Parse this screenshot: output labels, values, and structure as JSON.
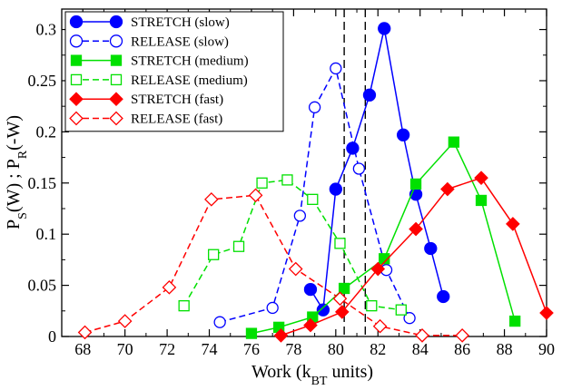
{
  "chart_data": {
    "type": "line",
    "xlabel": "Work (k_BT units)",
    "ylabel": "P_S(W) ; P_R(-W)",
    "xlim": [
      67,
      90
    ],
    "ylim": [
      0,
      0.32
    ],
    "xticks": [
      68,
      70,
      72,
      74,
      76,
      78,
      80,
      82,
      84,
      86,
      88,
      90
    ],
    "yticks": [
      0,
      0.05,
      0.1,
      0.15,
      0.2,
      0.25,
      0.3
    ],
    "ytick_labels": [
      "0",
      "0.05",
      "0.1",
      "0.15",
      "0.2",
      "0.25",
      "0.3"
    ],
    "vlines": [
      80.4,
      81.4
    ],
    "legend_position": "top-left",
    "grid": false,
    "series": [
      {
        "name": "STRETCH (slow)",
        "color": "#0000ff",
        "marker": "circle",
        "filled": true,
        "dashed": false,
        "x": [
          78.8,
          79.4,
          80.0,
          80.8,
          81.6,
          82.3,
          83.2,
          83.8,
          84.5,
          85.1
        ],
        "y": [
          0.046,
          0.026,
          0.144,
          0.184,
          0.236,
          0.301,
          0.197,
          0.139,
          0.086,
          0.039
        ]
      },
      {
        "name": "RELEASE (slow)",
        "color": "#0000ff",
        "marker": "circle",
        "filled": false,
        "dashed": true,
        "x": [
          74.5,
          77.0,
          78.3,
          79.0,
          80.0,
          81.1,
          82.4,
          83.5
        ],
        "y": [
          0.014,
          0.028,
          0.118,
          0.224,
          0.262,
          0.164,
          0.065,
          0.018
        ]
      },
      {
        "name": "STRETCH (medium)",
        "color": "#00e000",
        "marker": "square",
        "filled": true,
        "dashed": false,
        "x": [
          76.0,
          77.3,
          78.9,
          80.4,
          82.3,
          83.8,
          85.6,
          86.9,
          88.5
        ],
        "y": [
          0.003,
          0.009,
          0.019,
          0.047,
          0.076,
          0.149,
          0.19,
          0.133,
          0.015
        ]
      },
      {
        "name": "RELEASE (medium)",
        "color": "#00e000",
        "marker": "square",
        "filled": false,
        "dashed": true,
        "x": [
          72.8,
          74.2,
          75.4,
          76.5,
          77.7,
          78.9,
          80.2,
          81.7,
          83.1
        ],
        "y": [
          0.03,
          0.08,
          0.088,
          0.15,
          0.153,
          0.134,
          0.091,
          0.03,
          0.026
        ]
      },
      {
        "name": "STRETCH (fast)",
        "color": "#ff0000",
        "marker": "diamond",
        "filled": true,
        "dashed": false,
        "x": [
          77.4,
          78.8,
          80.3,
          82.0,
          83.8,
          85.3,
          86.9,
          88.4,
          90.0
        ],
        "y": [
          0.001,
          0.011,
          0.024,
          0.066,
          0.105,
          0.144,
          0.155,
          0.11,
          0.023
        ]
      },
      {
        "name": "RELEASE (fast)",
        "color": "#ff0000",
        "marker": "diamond",
        "filled": false,
        "dashed": true,
        "x": [
          68.1,
          70.0,
          72.1,
          74.1,
          76.2,
          78.1,
          80.2,
          82.1,
          84.1,
          86.0
        ],
        "y": [
          0.004,
          0.015,
          0.048,
          0.134,
          0.138,
          0.066,
          0.037,
          0.01,
          0.001,
          0.001
        ]
      }
    ]
  }
}
